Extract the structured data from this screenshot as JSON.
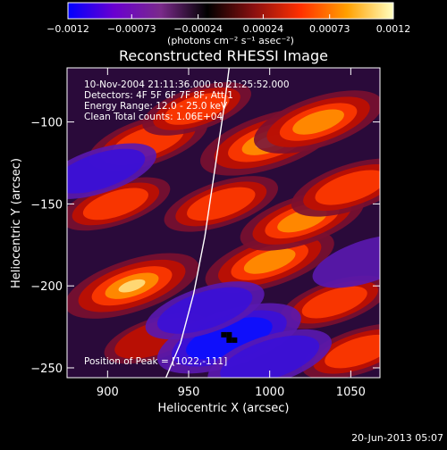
{
  "chart_data": {
    "type": "heatmap",
    "title": "Reconstructed RHESSI Image",
    "xlabel": "Heliocentric X (arcsec)",
    "ylabel": "Heliocentric Y (arcsec)",
    "xlim": [
      875,
      1068
    ],
    "ylim": [
      -256,
      -67
    ],
    "x_ticks": [
      900,
      950,
      1000,
      1050
    ],
    "y_ticks": [
      -100,
      -150,
      -200,
      -250
    ],
    "x_tick_labels": [
      "900",
      "950",
      "1000",
      "1050"
    ],
    "y_tick_labels": [
      "−100",
      "−150",
      "−200",
      "−250"
    ],
    "colorbar": {
      "range": [
        -0.0012,
        0.0012
      ],
      "ticks": [
        -0.0012,
        -0.00073,
        -0.00024,
        0.00024,
        0.00073,
        0.0012
      ],
      "tick_labels": [
        "−0.0012",
        "−0.00073",
        "−0.00024",
        "0.00024",
        "0.00073",
        "0.0012"
      ],
      "units_label": "(photons cm⁻² s⁻¹ asec⁻²)",
      "colors": [
        "#0000ff",
        "#6a00d0",
        "#7a2a8a",
        "#000000",
        "#8a1010",
        "#ff3000",
        "#ffa000",
        "#ffffc0"
      ]
    },
    "info_lines": [
      "10-Nov-2004 21:11:36.000 to 21:25:52.000",
      "Detectors: 4F 5F 6F 7F 8F, Att 1",
      "Energy Range: 12.0 - 25.0 keV",
      "Clean      Total counts: 1.06E+04"
    ],
    "peak_label": "Position of Peak = [1022,-111]",
    "limb_curve": {
      "x": [
        975,
        972,
        966,
        960,
        953,
        945,
        936
      ],
      "y": [
        -67,
        -90,
        -130,
        -170,
        -205,
        -235,
        -256
      ]
    },
    "features": [
      {
        "x": 1000,
        "y": -112,
        "value": 0.0011
      },
      {
        "x": 1030,
        "y": -100,
        "value": 0.0009
      },
      {
        "x": 925,
        "y": -112,
        "value": 0.0007
      },
      {
        "x": 955,
        "y": -92,
        "value": 0.0005
      },
      {
        "x": 915,
        "y": -200,
        "value": 0.001
      },
      {
        "x": 1000,
        "y": -185,
        "value": 0.0009
      },
      {
        "x": 1020,
        "y": -160,
        "value": 0.0008
      },
      {
        "x": 1050,
        "y": -140,
        "value": 0.0007
      },
      {
        "x": 905,
        "y": -150,
        "value": 0.0005
      },
      {
        "x": 970,
        "y": -150,
        "value": 0.0006
      },
      {
        "x": 1055,
        "y": -240,
        "value": 0.0006
      },
      {
        "x": 1040,
        "y": -210,
        "value": 0.0005
      },
      {
        "x": 930,
        "y": -232,
        "value": 0.0004
      },
      {
        "x": 975,
        "y": -232,
        "value": -0.0012
      },
      {
        "x": 1000,
        "y": -245,
        "value": -0.0008
      },
      {
        "x": 895,
        "y": -130,
        "value": -0.0006
      },
      {
        "x": 960,
        "y": -215,
        "value": -0.0007
      },
      {
        "x": 1060,
        "y": -185,
        "value": -0.0005
      }
    ],
    "grid": false
  },
  "footer": {
    "timestamp": "20-Jun-2013 05:07"
  }
}
